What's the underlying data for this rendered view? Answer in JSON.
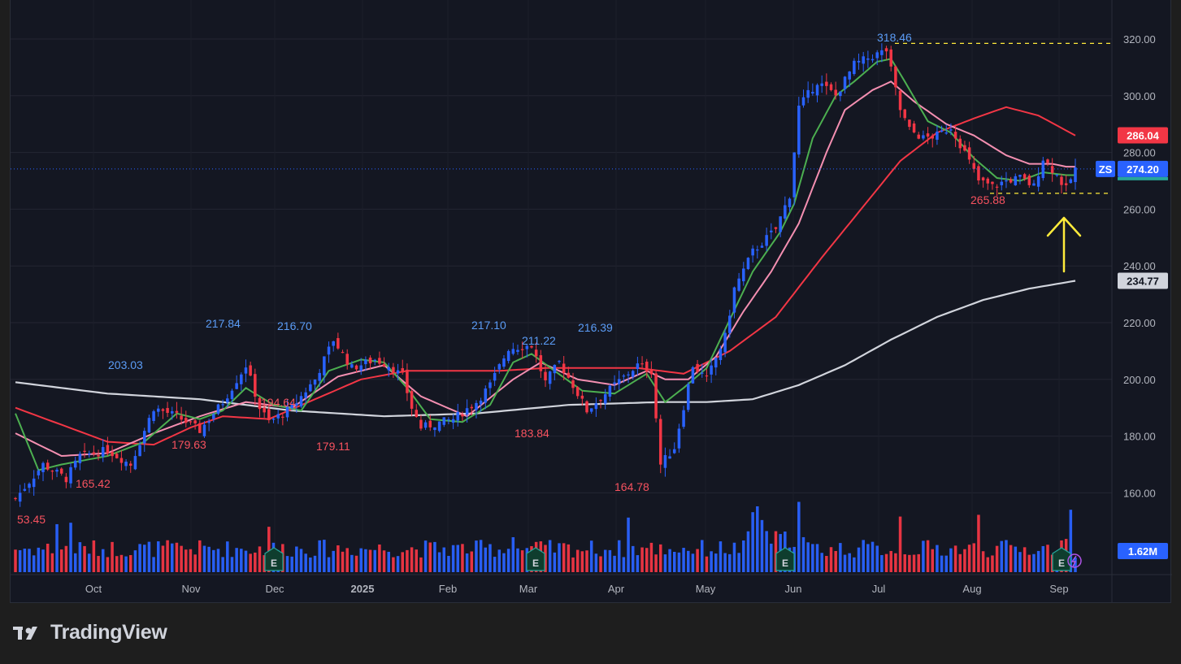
{
  "brand": {
    "name": "TradingView",
    "logo": "tradingview-logo"
  },
  "colors": {
    "background": "#141722",
    "up": "#2962ff",
    "down": "#f23645",
    "ma_fast": "#4caf50",
    "ma_mid": "#f48fb1",
    "ma_slow": "#f23645",
    "ma_long": "#d1d4dc",
    "guide": "#ffeb3b",
    "arrow": "#ffeb3b"
  },
  "chart_data": {
    "type": "candlestick",
    "symbol": "ZS",
    "last_price": "274.20",
    "x_ticks": [
      "Oct",
      "Nov",
      "Dec",
      "2025",
      "Feb",
      "Mar",
      "Apr",
      "May",
      "Jun",
      "Jul",
      "Aug",
      "Sep"
    ],
    "y_ticks": [
      "320.00",
      "300.00",
      "280.00",
      "260.00",
      "240.00",
      "220.00",
      "200.00",
      "180.00",
      "160.00"
    ],
    "ylim": [
      150,
      330
    ],
    "price_tags": [
      {
        "label": "286.04",
        "value": 286.04,
        "color": "#f23645"
      },
      {
        "label": "274.20",
        "value": 274.2,
        "color": "#2962ff"
      },
      {
        "label": "234.77",
        "value": 234.77,
        "color": "#d1d4dc"
      }
    ],
    "volume_tag": "1.62M",
    "high_low_labels": [
      {
        "text": "53.45",
        "kind": "low"
      },
      {
        "text": "165.42",
        "kind": "low"
      },
      {
        "text": "203.03",
        "kind": "high"
      },
      {
        "text": "217.84",
        "kind": "high"
      },
      {
        "text": "179.63",
        "kind": "low"
      },
      {
        "text": "216.70",
        "kind": "high"
      },
      {
        "text": "194.64",
        "kind": "low"
      },
      {
        "text": "179.11",
        "kind": "low"
      },
      {
        "text": "217.10",
        "kind": "high"
      },
      {
        "text": "211.22",
        "kind": "high"
      },
      {
        "text": "183.84",
        "kind": "low"
      },
      {
        "text": "216.39",
        "kind": "high"
      },
      {
        "text": "164.78",
        "kind": "low"
      },
      {
        "text": "318.46",
        "kind": "high"
      },
      {
        "text": "265.88",
        "kind": "low"
      }
    ],
    "guides": [
      {
        "value": 318.46,
        "style": "dashed"
      },
      {
        "value": 265.88,
        "style": "dashed"
      }
    ],
    "earnings_markers": 5,
    "earnings_marker_label": "E",
    "close_path": [
      [
        0,
        158
      ],
      [
        6,
        170
      ],
      [
        11,
        165
      ],
      [
        14,
        173
      ],
      [
        20,
        175
      ],
      [
        25,
        170
      ],
      [
        30,
        190
      ],
      [
        35,
        187
      ],
      [
        40,
        182
      ],
      [
        45,
        192
      ],
      [
        50,
        205
      ],
      [
        53,
        190
      ],
      [
        55,
        185
      ],
      [
        60,
        190
      ],
      [
        65,
        200
      ],
      [
        69,
        214
      ],
      [
        73,
        204
      ],
      [
        78,
        207
      ],
      [
        81,
        205
      ],
      [
        84,
        201
      ],
      [
        86,
        190
      ],
      [
        88,
        183
      ],
      [
        95,
        186
      ],
      [
        100,
        192
      ],
      [
        103,
        198
      ],
      [
        107,
        211
      ],
      [
        112,
        212
      ],
      [
        115,
        199
      ],
      [
        118,
        206
      ],
      [
        121,
        198
      ],
      [
        124,
        189
      ],
      [
        130,
        198
      ],
      [
        135,
        205
      ],
      [
        138,
        203
      ],
      [
        140,
        170
      ],
      [
        143,
        176
      ],
      [
        147,
        205
      ],
      [
        150,
        200
      ],
      [
        154,
        215
      ],
      [
        156,
        232
      ],
      [
        160,
        245
      ],
      [
        165,
        253
      ],
      [
        168,
        265
      ],
      [
        170,
        296
      ],
      [
        174,
        305
      ],
      [
        178,
        300
      ],
      [
        182,
        311
      ],
      [
        186,
        314
      ],
      [
        189,
        316
      ],
      [
        192,
        295
      ],
      [
        194,
        288
      ],
      [
        197,
        285
      ],
      [
        200,
        286
      ],
      [
        203,
        289
      ],
      [
        206,
        280
      ],
      [
        209,
        270
      ],
      [
        212,
        268
      ],
      [
        215,
        270
      ],
      [
        218,
        271
      ],
      [
        221,
        268
      ],
      [
        223,
        278
      ],
      [
        226,
        272
      ],
      [
        228,
        267
      ],
      [
        230,
        274.2
      ]
    ],
    "ma_fast_path": [
      [
        0,
        188
      ],
      [
        5,
        168
      ],
      [
        10,
        170
      ],
      [
        20,
        173
      ],
      [
        28,
        178
      ],
      [
        35,
        188
      ],
      [
        40,
        186
      ],
      [
        45,
        189
      ],
      [
        50,
        197
      ],
      [
        56,
        191
      ],
      [
        62,
        189
      ],
      [
        68,
        203
      ],
      [
        75,
        207
      ],
      [
        80,
        206
      ],
      [
        85,
        197
      ],
      [
        90,
        186
      ],
      [
        97,
        185
      ],
      [
        103,
        191
      ],
      [
        108,
        206
      ],
      [
        112,
        209
      ],
      [
        117,
        203
      ],
      [
        123,
        196
      ],
      [
        130,
        195
      ],
      [
        137,
        202
      ],
      [
        141,
        192
      ],
      [
        145,
        197
      ],
      [
        150,
        204
      ],
      [
        155,
        221
      ],
      [
        160,
        238
      ],
      [
        166,
        252
      ],
      [
        169,
        262
      ],
      [
        173,
        285
      ],
      [
        178,
        300
      ],
      [
        182,
        305
      ],
      [
        187,
        312
      ],
      [
        190,
        313
      ],
      [
        193,
        305
      ],
      [
        198,
        291
      ],
      [
        203,
        287
      ],
      [
        208,
        278
      ],
      [
        213,
        271
      ],
      [
        218,
        270
      ],
      [
        223,
        273
      ],
      [
        228,
        272
      ]
    ],
    "ma_mid_path": [
      [
        0,
        181
      ],
      [
        10,
        173
      ],
      [
        20,
        174
      ],
      [
        30,
        181
      ],
      [
        40,
        187
      ],
      [
        50,
        192
      ],
      [
        60,
        190
      ],
      [
        70,
        201
      ],
      [
        80,
        205
      ],
      [
        88,
        194
      ],
      [
        98,
        187
      ],
      [
        108,
        200
      ],
      [
        114,
        206
      ],
      [
        122,
        200
      ],
      [
        130,
        198
      ],
      [
        137,
        203
      ],
      [
        141,
        200
      ],
      [
        146,
        200
      ],
      [
        152,
        208
      ],
      [
        158,
        224
      ],
      [
        164,
        238
      ],
      [
        170,
        255
      ],
      [
        176,
        280
      ],
      [
        180,
        295
      ],
      [
        186,
        302
      ],
      [
        190,
        305
      ],
      [
        195,
        298
      ],
      [
        202,
        290
      ],
      [
        208,
        286
      ],
      [
        215,
        279
      ],
      [
        220,
        276
      ],
      [
        225,
        276
      ],
      [
        228,
        275
      ]
    ],
    "ma_slow_path": [
      [
        0,
        190
      ],
      [
        10,
        184
      ],
      [
        20,
        178
      ],
      [
        30,
        177
      ],
      [
        38,
        183
      ],
      [
        45,
        187
      ],
      [
        55,
        186
      ],
      [
        65,
        193
      ],
      [
        75,
        200
      ],
      [
        85,
        203
      ],
      [
        95,
        203
      ],
      [
        105,
        203
      ],
      [
        115,
        204
      ],
      [
        125,
        204
      ],
      [
        135,
        204
      ],
      [
        145,
        202
      ],
      [
        155,
        210
      ],
      [
        165,
        222
      ],
      [
        175,
        243
      ],
      [
        185,
        263
      ],
      [
        192,
        277
      ],
      [
        200,
        287
      ],
      [
        208,
        292
      ],
      [
        215,
        296
      ],
      [
        222,
        293
      ],
      [
        230,
        286
      ]
    ],
    "ma_long_path": [
      [
        0,
        199
      ],
      [
        20,
        195
      ],
      [
        40,
        193
      ],
      [
        60,
        189
      ],
      [
        80,
        187
      ],
      [
        100,
        188
      ],
      [
        120,
        191
      ],
      [
        140,
        192
      ],
      [
        150,
        192
      ],
      [
        160,
        193
      ],
      [
        170,
        198
      ],
      [
        180,
        205
      ],
      [
        190,
        214
      ],
      [
        200,
        222
      ],
      [
        210,
        228
      ],
      [
        220,
        232
      ],
      [
        230,
        234.77
      ]
    ]
  }
}
